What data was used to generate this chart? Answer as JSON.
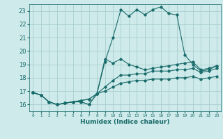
{
  "xlabel": "Humidex (Indice chaleur)",
  "ylabel": "",
  "bg_color": "#ceeaea",
  "grid_color": "#aacece",
  "line_color": "#1a6b6b",
  "xlim": [
    -0.5,
    23.5
  ],
  "ylim": [
    15.5,
    23.5
  ],
  "xticks": [
    0,
    1,
    2,
    3,
    4,
    5,
    6,
    7,
    8,
    9,
    10,
    11,
    12,
    13,
    14,
    15,
    16,
    17,
    18,
    19,
    20,
    21,
    22,
    23
  ],
  "yticks": [
    16,
    17,
    18,
    19,
    20,
    21,
    22,
    23
  ],
  "lines": [
    {
      "x": [
        0,
        1,
        2,
        3,
        4,
        5,
        6,
        7,
        8,
        9,
        10,
        11,
        12,
        13,
        14,
        15,
        16,
        17,
        18,
        19,
        20,
        21,
        22,
        23
      ],
      "y": [
        16.9,
        16.7,
        16.2,
        16.0,
        16.1,
        16.2,
        16.2,
        16.0,
        16.8,
        19.2,
        21.0,
        23.1,
        22.6,
        23.1,
        22.7,
        23.1,
        23.3,
        22.8,
        22.7,
        19.7,
        19.0,
        18.5,
        18.6,
        18.9
      ]
    },
    {
      "x": [
        0,
        1,
        2,
        3,
        4,
        5,
        6,
        7,
        8,
        9,
        10,
        11,
        12,
        13,
        14,
        15,
        16,
        17,
        18,
        19,
        20,
        21,
        22,
        23
      ],
      "y": [
        16.9,
        16.7,
        16.2,
        16.0,
        16.1,
        16.2,
        16.2,
        16.0,
        16.8,
        19.4,
        19.1,
        19.4,
        19.0,
        18.8,
        18.6,
        18.7,
        18.8,
        18.9,
        19.0,
        19.1,
        19.2,
        18.6,
        18.7,
        18.9
      ]
    },
    {
      "x": [
        0,
        1,
        2,
        3,
        4,
        5,
        6,
        7,
        8,
        9,
        10,
        11,
        12,
        13,
        14,
        15,
        16,
        17,
        18,
        19,
        20,
        21,
        22,
        23
      ],
      "y": [
        16.9,
        16.7,
        16.2,
        16.0,
        16.1,
        16.2,
        16.3,
        16.4,
        16.8,
        17.3,
        17.8,
        18.2,
        18.2,
        18.3,
        18.3,
        18.5,
        18.5,
        18.5,
        18.6,
        18.6,
        18.7,
        18.4,
        18.5,
        18.7
      ]
    },
    {
      "x": [
        0,
        1,
        2,
        3,
        4,
        5,
        6,
        7,
        8,
        9,
        10,
        11,
        12,
        13,
        14,
        15,
        16,
        17,
        18,
        19,
        20,
        21,
        22,
        23
      ],
      "y": [
        16.9,
        16.7,
        16.2,
        16.0,
        16.1,
        16.2,
        16.3,
        16.4,
        16.8,
        17.0,
        17.3,
        17.6,
        17.7,
        17.8,
        17.8,
        17.9,
        17.9,
        17.9,
        18.0,
        18.0,
        18.1,
        17.9,
        18.0,
        18.1
      ]
    }
  ]
}
